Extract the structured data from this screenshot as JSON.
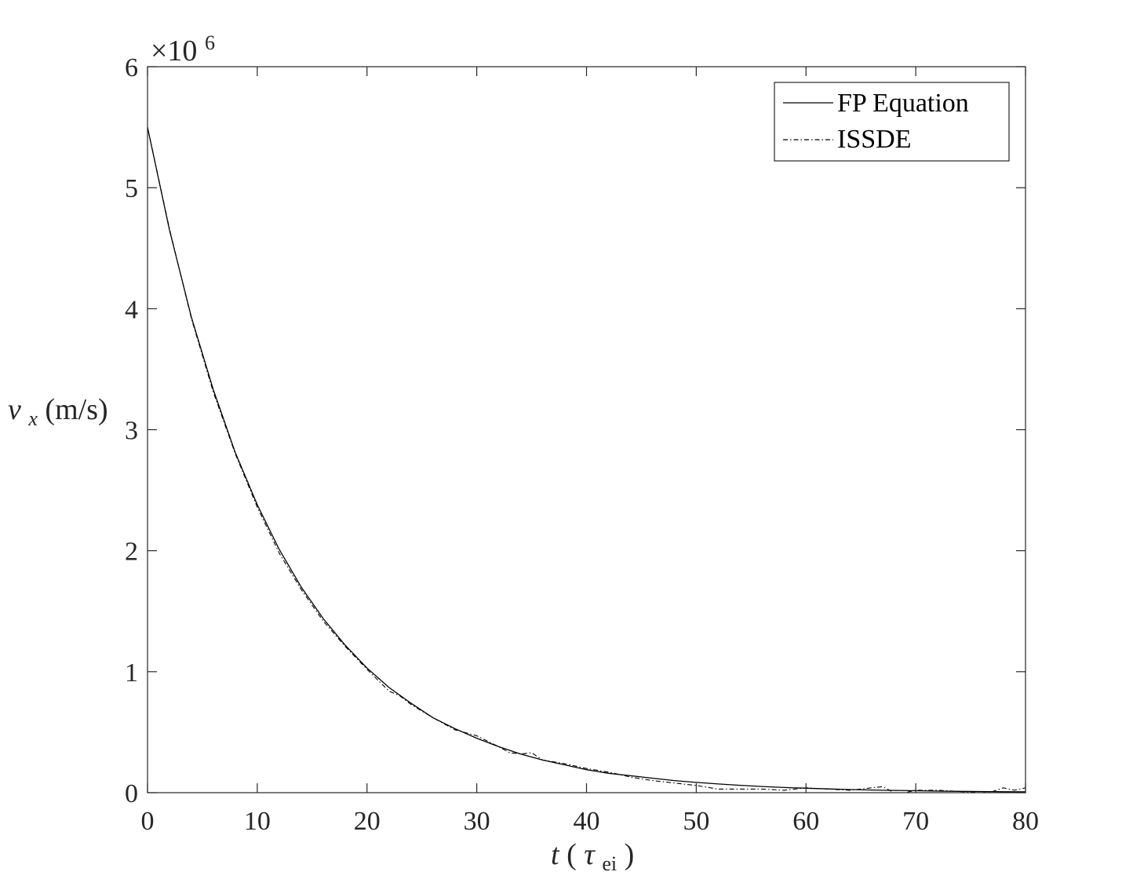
{
  "chart_data": {
    "type": "line",
    "xlabel": {
      "main": "t",
      "sym": "τ",
      "sub": "ei"
    },
    "ylabel": {
      "var": "v",
      "sub": "x",
      "unit": "(m/s)"
    },
    "exponent": {
      "base": "×10",
      "power": "6"
    },
    "xlim": [
      0,
      80
    ],
    "ylim": [
      0,
      6
    ],
    "xticks": [
      "0",
      "10",
      "20",
      "30",
      "40",
      "50",
      "60",
      "70",
      "80"
    ],
    "yticks": [
      "0",
      "1",
      "2",
      "3",
      "4",
      "5",
      "6"
    ],
    "grid": false,
    "legend_position": "top-right",
    "series": [
      {
        "name": "FP Equation",
        "style": "solid",
        "x": [
          0,
          2,
          4,
          6,
          8,
          10,
          12,
          14,
          16,
          18,
          20,
          22,
          24,
          26,
          28,
          30,
          32,
          34,
          36,
          38,
          40,
          42,
          44,
          46,
          48,
          50,
          52,
          54,
          56,
          58,
          60,
          62,
          64,
          66,
          68,
          70,
          72,
          74,
          76,
          78,
          80
        ],
        "y": [
          5.5,
          4.65,
          3.93,
          3.33,
          2.81,
          2.38,
          2.01,
          1.7,
          1.44,
          1.22,
          1.03,
          0.87,
          0.74,
          0.62,
          0.53,
          0.45,
          0.38,
          0.32,
          0.27,
          0.23,
          0.19,
          0.16,
          0.14,
          0.12,
          0.1,
          0.085,
          0.072,
          0.061,
          0.051,
          0.043,
          0.037,
          0.031,
          0.026,
          0.022,
          0.019,
          0.016,
          0.013,
          0.011,
          0.0095,
          0.008,
          0.007
        ]
      },
      {
        "name": "ISSDE",
        "style": "dashdot",
        "x": [
          0,
          2,
          4,
          6,
          8,
          10,
          12,
          14,
          16,
          18,
          20,
          22,
          23,
          24,
          26,
          28,
          30,
          32,
          33,
          34,
          35,
          36,
          38,
          40,
          42,
          44,
          46,
          48,
          50,
          52,
          54,
          56,
          58,
          60,
          62,
          64,
          66,
          67,
          68,
          69,
          70,
          72,
          74,
          76,
          77,
          78,
          79,
          80
        ],
        "y": [
          5.5,
          4.66,
          3.92,
          3.31,
          2.8,
          2.36,
          1.98,
          1.68,
          1.42,
          1.21,
          1.02,
          0.84,
          0.8,
          0.73,
          0.62,
          0.52,
          0.47,
          0.38,
          0.33,
          0.32,
          0.33,
          0.27,
          0.24,
          0.2,
          0.17,
          0.13,
          0.1,
          0.08,
          0.06,
          0.03,
          0.03,
          0.03,
          0.02,
          0.04,
          0.03,
          0.02,
          0.04,
          0.05,
          0.0,
          0.0,
          0.02,
          0.02,
          0.01,
          0.0,
          0.01,
          0.04,
          0.02,
          0.04
        ]
      }
    ]
  }
}
